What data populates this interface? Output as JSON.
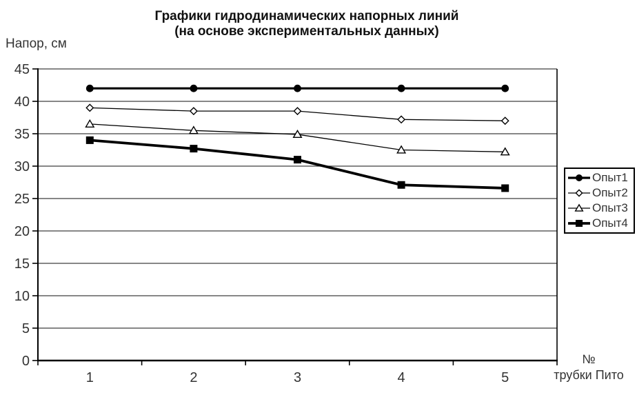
{
  "chart_data": {
    "type": "line",
    "title_line1": "Графики гидродинамических напорных линий",
    "title_line2": "(на основе экспериментальных данных)",
    "ylabel": "Напор, см",
    "xlabel_line1": "№",
    "xlabel_line2": "трубки Пито",
    "categories": [
      "1",
      "2",
      "3",
      "4",
      "5"
    ],
    "ylim": [
      0,
      45
    ],
    "yticks": [
      0,
      5,
      10,
      15,
      20,
      25,
      30,
      35,
      40,
      45
    ],
    "grid": "horizontal",
    "legend_position": "right",
    "series": [
      {
        "name": "Опыт1",
        "values": [
          42,
          42,
          42,
          42,
          42
        ],
        "marker": "circle-filled",
        "line_width": 3.2,
        "color": "#000000"
      },
      {
        "name": "Опыт2",
        "values": [
          39,
          38.5,
          38.5,
          37.2,
          37
        ],
        "marker": "diamond-open",
        "line_width": 1.3,
        "color": "#000000"
      },
      {
        "name": "Опыт3",
        "values": [
          36.5,
          35.5,
          34.9,
          32.5,
          32.2
        ],
        "marker": "triangle-open",
        "line_width": 1.3,
        "color": "#000000"
      },
      {
        "name": "Опыт4",
        "values": [
          34,
          32.7,
          31,
          27.1,
          26.6
        ],
        "marker": "square-filled",
        "line_width": 3.8,
        "color": "#000000"
      }
    ]
  },
  "colors": {
    "background": "#ffffff",
    "axis": "#000000",
    "grid": "#3d3d3d",
    "text": "#333333",
    "title": "#111111"
  }
}
